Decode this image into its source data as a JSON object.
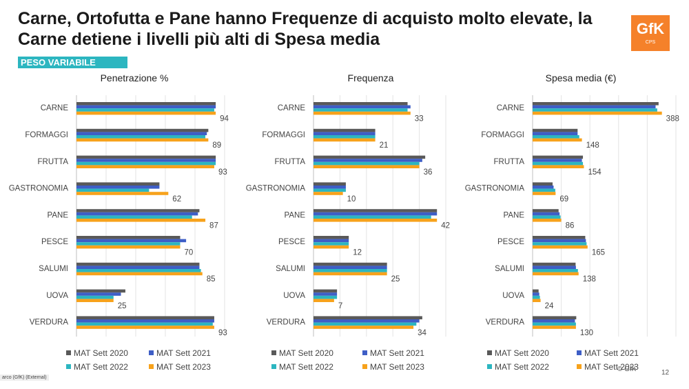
{
  "page": {
    "title": "Carne, Ortofutta e Pane hanno Frequenze di acquisto molto elevate, la Carne detiene i livelli più alti di Spesa media",
    "tag": "PESO VARIABILE",
    "logo_main": "GfK",
    "logo_sub": "CPS",
    "copyright": "© GfK",
    "page_number": "12",
    "footer_left": "arco (GfK) (External)"
  },
  "colors": {
    "MAT Sett 2020": "#595959",
    "MAT Sett 2021": "#3e5ec6",
    "MAT Sett 2022": "#2cb6c0",
    "MAT Sett 2023": "#f7a21b",
    "tag_bg": "#2cb6c0",
    "logo_bg": "#f5812a"
  },
  "chart_data": [
    {
      "type": "bar",
      "orientation": "horizontal",
      "title": "Penetrazione %",
      "categories": [
        "CARNE",
        "FORMAGGI",
        "FRUTTA",
        "GASTRONOMIA",
        "PANE",
        "PESCE",
        "SALUMI",
        "UOVA",
        "VERDURA"
      ],
      "series": [
        {
          "name": "MAT Sett 2020",
          "values": [
            94,
            89,
            94,
            56,
            83,
            70,
            83,
            33,
            93
          ]
        },
        {
          "name": "MAT Sett 2021",
          "values": [
            94,
            88,
            94,
            56,
            82,
            74,
            83,
            30,
            93
          ]
        },
        {
          "name": "MAT Sett 2022",
          "values": [
            93,
            87,
            94,
            49,
            78,
            70,
            84,
            25,
            92
          ]
        },
        {
          "name": "MAT Sett 2023",
          "values": [
            94,
            89,
            93,
            62,
            87,
            70,
            85,
            25,
            93
          ]
        }
      ],
      "data_labels": [
        "94",
        "89",
        "93",
        "62",
        "87",
        "70",
        "85",
        "25",
        "93"
      ],
      "xlim": [
        0,
        100
      ],
      "grid": true,
      "legend": "bottom"
    },
    {
      "type": "bar",
      "orientation": "horizontal",
      "title": "Frequenza",
      "categories": [
        "CARNE",
        "FORMAGGI",
        "FRUTTA",
        "GASTRONOMIA",
        "PANE",
        "PESCE",
        "SALUMI",
        "UOVA",
        "VERDURA"
      ],
      "series": [
        {
          "name": "MAT Sett 2020",
          "values": [
            32,
            21,
            38,
            11,
            42,
            12,
            25,
            8,
            37
          ]
        },
        {
          "name": "MAT Sett 2021",
          "values": [
            33,
            21,
            37,
            11,
            42,
            12,
            25,
            8,
            36
          ]
        },
        {
          "name": "MAT Sett 2022",
          "values": [
            32,
            21,
            36,
            11,
            40,
            12,
            25,
            8,
            35
          ]
        },
        {
          "name": "MAT Sett 2023",
          "values": [
            33,
            21,
            36,
            10,
            42,
            12,
            25,
            7,
            34
          ]
        }
      ],
      "data_labels": [
        "33",
        "21",
        "36",
        "10",
        "42",
        "12",
        "25",
        "7",
        "34"
      ],
      "xlim": [
        0,
        45
      ],
      "grid": true,
      "legend": "bottom"
    },
    {
      "type": "bar",
      "orientation": "horizontal",
      "title": "Spesa media (€)",
      "categories": [
        "CARNE",
        "FORMAGGI",
        "FRUTTA",
        "GASTRONOMIA",
        "PANE",
        "PESCE",
        "SALUMI",
        "UOVA",
        "VERDURA"
      ],
      "series": [
        {
          "name": "MAT Sett 2020",
          "values": [
            378,
            135,
            151,
            60,
            78,
            158,
            129,
            18,
            131
          ]
        },
        {
          "name": "MAT Sett 2021",
          "values": [
            369,
            135,
            148,
            63,
            81,
            160,
            130,
            20,
            127
          ]
        },
        {
          "name": "MAT Sett 2022",
          "values": [
            374,
            140,
            151,
            68,
            84,
            162,
            136,
            22,
            130
          ]
        },
        {
          "name": "MAT Sett 2023",
          "values": [
            388,
            148,
            154,
            69,
            86,
            165,
            138,
            24,
            130
          ]
        }
      ],
      "data_labels": [
        "388",
        "148",
        "154",
        "69",
        "86",
        "165",
        "138",
        "24",
        "130"
      ],
      "xlim": [
        0,
        430
      ],
      "grid": true,
      "legend": "bottom"
    }
  ]
}
